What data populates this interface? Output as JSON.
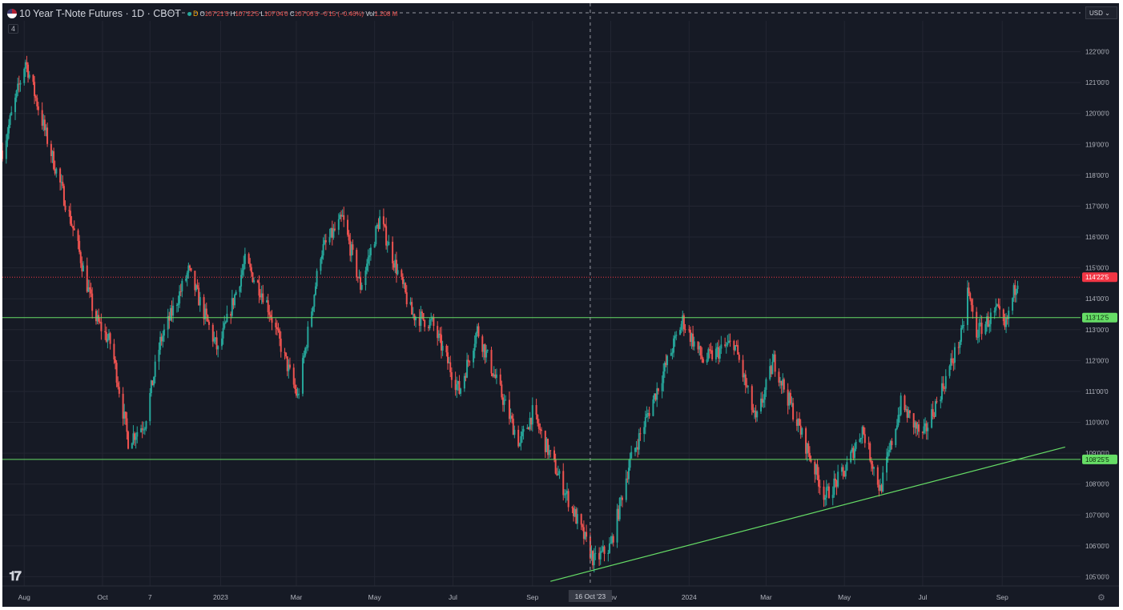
{
  "header": {
    "symbol": "10 Year T-Note Futures · 1D · CBOT",
    "badge": "D",
    "open_label": "O",
    "open": "107'21'5",
    "high_label": "H",
    "high": "107'22'5",
    "low_label": "L",
    "low": "107'04'0",
    "close_label": "C",
    "close": "107'06'5",
    "change": "−0'15 (−0.46%)",
    "vol_label": "Vol",
    "vol": "1.208 M",
    "indicator_count": "4",
    "currency": "USD"
  },
  "colors": {
    "background": "#161a25",
    "up": "#26a69a",
    "down": "#ef5350",
    "support_line": "#66dd66",
    "last_price_label": "#f23645",
    "grid": "#232632",
    "text": "#b2b5be"
  },
  "chart_data": {
    "type": "candlestick",
    "title": "10 Year T-Note Futures",
    "ylim": [
      104.7,
      123.0
    ],
    "y_ticks": [
      {
        "value": 105,
        "label": "105'00'0"
      },
      {
        "value": 106,
        "label": "106'00'0"
      },
      {
        "value": 107,
        "label": "107'00'0"
      },
      {
        "value": 108,
        "label": "108'00'0"
      },
      {
        "value": 109,
        "label": "109'00'0"
      },
      {
        "value": 110,
        "label": "110'00'0"
      },
      {
        "value": 111,
        "label": "111'00'0"
      },
      {
        "value": 112,
        "label": "112'00'0"
      },
      {
        "value": 113,
        "label": "113'00'0"
      },
      {
        "value": 114,
        "label": "114'00'0"
      },
      {
        "value": 115,
        "label": "115'00'0"
      },
      {
        "value": 116,
        "label": "116'00'0"
      },
      {
        "value": 117,
        "label": "117'00'0"
      },
      {
        "value": 118,
        "label": "118'00'0"
      },
      {
        "value": 119,
        "label": "119'00'0"
      },
      {
        "value": 120,
        "label": "120'00'0"
      },
      {
        "value": 121,
        "label": "121'00'0"
      },
      {
        "value": 122,
        "label": "122'00'0"
      }
    ],
    "x_ticks": [
      {
        "date": "2022-08-01",
        "label": "Aug"
      },
      {
        "date": "2022-10-01",
        "label": "Oct"
      },
      {
        "date": "2022-11-07",
        "label": "7"
      },
      {
        "date": "2023-01-01",
        "label": "2023"
      },
      {
        "date": "2023-03-01",
        "label": "Mar"
      },
      {
        "date": "2023-05-01",
        "label": "May"
      },
      {
        "date": "2023-07-01",
        "label": "Jul"
      },
      {
        "date": "2023-09-01",
        "label": "Sep"
      },
      {
        "date": "2023-11-01",
        "label": "Nov"
      },
      {
        "date": "2024-01-01",
        "label": "2024"
      },
      {
        "date": "2024-03-01",
        "label": "Mar"
      },
      {
        "date": "2024-05-01",
        "label": "May"
      },
      {
        "date": "2024-07-01",
        "label": "Jul"
      },
      {
        "date": "2024-09-01",
        "label": "Sep"
      }
    ],
    "x_range": [
      "2022-07-15",
      "2024-11-01"
    ],
    "crosshair": {
      "date": "2023-10-16",
      "label": "16 Oct '23"
    },
    "horizontal_lines": [
      {
        "value": 113.39,
        "label": "113'12'5",
        "color": "#66dd66"
      },
      {
        "value": 108.8,
        "label": "108'25'5",
        "color": "#66dd66"
      }
    ],
    "last_price": {
      "value": 114.7,
      "label": "114'22'5"
    },
    "trendline": {
      "start": {
        "date": "2023-09-15",
        "value": 104.85
      },
      "end": {
        "date": "2024-10-20",
        "value": 109.2
      }
    },
    "price_path": [
      {
        "date": "2022-07-15",
        "value": 118.8
      },
      {
        "date": "2022-08-02",
        "value": 121.7
      },
      {
        "date": "2022-08-20",
        "value": 119.0
      },
      {
        "date": "2022-09-10",
        "value": 116.0
      },
      {
        "date": "2022-09-25",
        "value": 113.4
      },
      {
        "date": "2022-10-08",
        "value": 112.5
      },
      {
        "date": "2022-10-21",
        "value": 109.4
      },
      {
        "date": "2022-11-03",
        "value": 110.0
      },
      {
        "date": "2022-11-15",
        "value": 112.6
      },
      {
        "date": "2022-12-07",
        "value": 114.9
      },
      {
        "date": "2022-12-30",
        "value": 112.3
      },
      {
        "date": "2023-01-20",
        "value": 115.2
      },
      {
        "date": "2023-02-05",
        "value": 114.0
      },
      {
        "date": "2023-03-02",
        "value": 110.8
      },
      {
        "date": "2023-03-20",
        "value": 115.5
      },
      {
        "date": "2023-04-06",
        "value": 116.6
      },
      {
        "date": "2023-04-20",
        "value": 114.4
      },
      {
        "date": "2023-05-05",
        "value": 116.6
      },
      {
        "date": "2023-05-30",
        "value": 113.5
      },
      {
        "date": "2023-06-15",
        "value": 113.2
      },
      {
        "date": "2023-07-06",
        "value": 111.0
      },
      {
        "date": "2023-07-20",
        "value": 113.0
      },
      {
        "date": "2023-08-22",
        "value": 109.3
      },
      {
        "date": "2023-09-01",
        "value": 110.3
      },
      {
        "date": "2023-09-20",
        "value": 108.4
      },
      {
        "date": "2023-10-19",
        "value": 105.5
      },
      {
        "date": "2023-11-01",
        "value": 106.0
      },
      {
        "date": "2023-11-15",
        "value": 108.6
      },
      {
        "date": "2023-12-27",
        "value": 113.3
      },
      {
        "date": "2024-01-12",
        "value": 112.0
      },
      {
        "date": "2024-02-05",
        "value": 112.6
      },
      {
        "date": "2024-02-22",
        "value": 110.0
      },
      {
        "date": "2024-03-07",
        "value": 112.0
      },
      {
        "date": "2024-04-16",
        "value": 107.6
      },
      {
        "date": "2024-05-01",
        "value": 108.4
      },
      {
        "date": "2024-05-15",
        "value": 109.8
      },
      {
        "date": "2024-05-29",
        "value": 107.8
      },
      {
        "date": "2024-06-14",
        "value": 110.6
      },
      {
        "date": "2024-07-01",
        "value": 109.5
      },
      {
        "date": "2024-07-17",
        "value": 111.2
      },
      {
        "date": "2024-08-01",
        "value": 112.9
      },
      {
        "date": "2024-08-05",
        "value": 114.3
      },
      {
        "date": "2024-08-12",
        "value": 112.9
      },
      {
        "date": "2024-08-28",
        "value": 113.6
      },
      {
        "date": "2024-09-03",
        "value": 113.0
      },
      {
        "date": "2024-09-13",
        "value": 114.7
      }
    ]
  }
}
